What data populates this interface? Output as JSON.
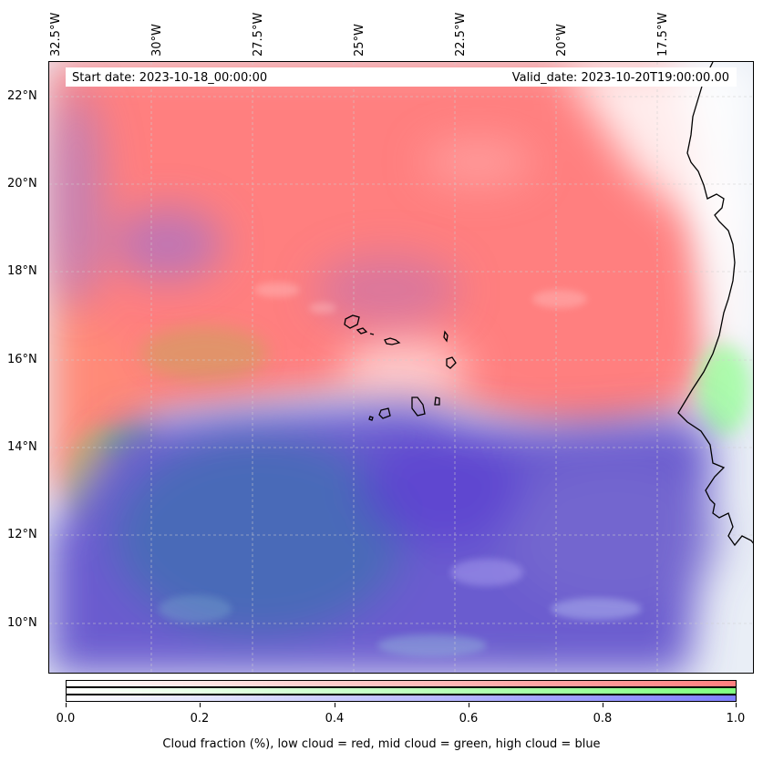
{
  "map": {
    "start_date_label": "Start date: 2023-10-18_00:00:00",
    "valid_date_label": "Valid_date: 2023-10-20T19:00:00.00",
    "longitude_labels": [
      "32.5°W",
      "30°W",
      "27.5°W",
      "25°W",
      "22.5°W",
      "20°W",
      "17.5°W"
    ],
    "latitude_labels": [
      "22°N",
      "20°N",
      "18°N",
      "16°N",
      "14°N",
      "12°N",
      "10°N"
    ],
    "colors": {
      "low_cloud": "#ff7f7f",
      "mid_cloud": "#80ff80",
      "high_cloud": "#6b5ccf",
      "coastline": "#000000"
    }
  },
  "colorbar": {
    "tick_labels": [
      "0.0",
      "0.2",
      "0.4",
      "0.6",
      "0.8",
      "1.0"
    ],
    "title": "Cloud fraction (%), low cloud = red, mid cloud = green, high cloud = blue",
    "bands": [
      "low",
      "mid",
      "high"
    ]
  }
}
